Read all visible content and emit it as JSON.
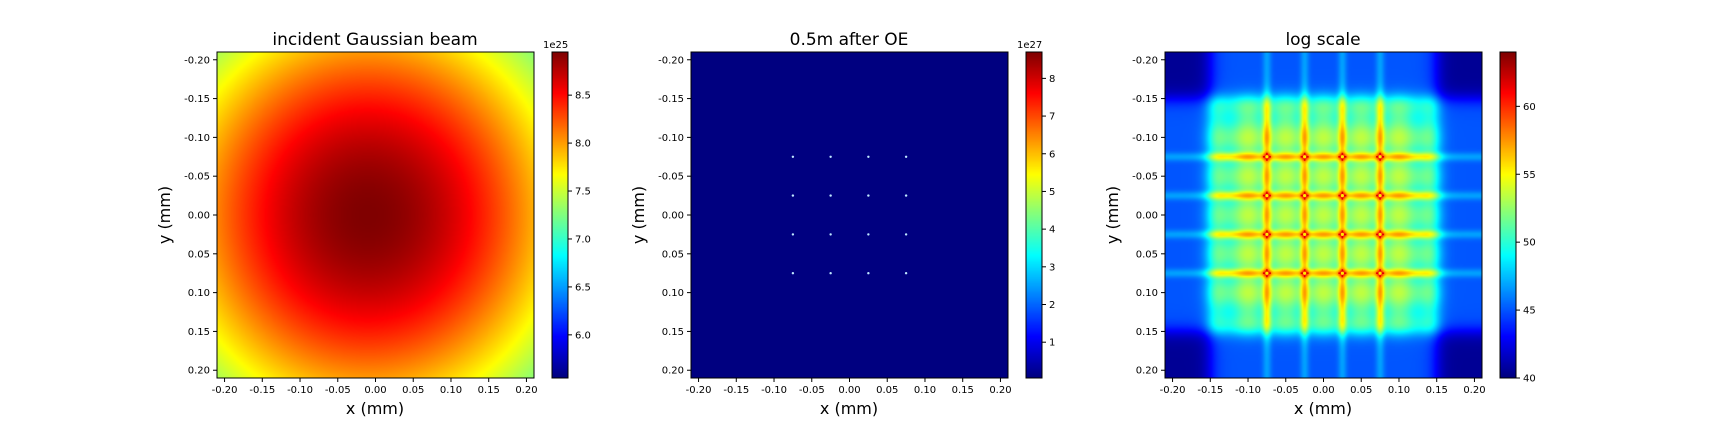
{
  "chart_data": [
    {
      "type": "heatmap",
      "title": "incident Gaussian beam",
      "xlabel": "x (mm)",
      "ylabel": "y (mm)",
      "xlim": [
        -0.21,
        0.21
      ],
      "ylim": [
        0.21,
        -0.21
      ],
      "y_inverted": true,
      "xticks": [
        "-0.20",
        "-0.15",
        "-0.10",
        "-0.05",
        "0.00",
        "0.05",
        "0.10",
        "0.15",
        "0.20"
      ],
      "yticks": [
        "-0.20",
        "-0.15",
        "-0.10",
        "-0.05",
        "0.00",
        "0.05",
        "0.10",
        "0.15",
        "0.20"
      ],
      "colormap": "jet",
      "field": "gaussian",
      "gaussian_center": [
        -0.01,
        0.0
      ],
      "gaussian_sigma": 0.262,
      "colorbar": {
        "min": 5.55,
        "max": 8.95,
        "ticks": [
          "6.0",
          "6.5",
          "7.0",
          "7.5",
          "8.0",
          "8.5"
        ],
        "offset_text": "1e25"
      }
    },
    {
      "type": "heatmap",
      "title": "0.5m after OE",
      "xlabel": "x (mm)",
      "ylabel": "y (mm)",
      "xlim": [
        -0.21,
        0.21
      ],
      "ylim": [
        0.21,
        -0.21
      ],
      "y_inverted": true,
      "xticks": [
        "-0.20",
        "-0.15",
        "-0.10",
        "-0.05",
        "0.00",
        "0.05",
        "0.10",
        "0.15",
        "0.20"
      ],
      "yticks": [
        "-0.20",
        "-0.15",
        "-0.10",
        "-0.05",
        "0.00",
        "0.05",
        "0.10",
        "0.15",
        "0.20"
      ],
      "colormap": "jet",
      "field": "spots",
      "spot_positions": [
        -0.075,
        -0.025,
        0.025,
        0.075
      ],
      "background_level": 0.0,
      "colorbar": {
        "min": 0.05,
        "max": 8.7,
        "ticks": [
          "1",
          "2",
          "3",
          "4",
          "5",
          "6",
          "7",
          "8"
        ],
        "offset_text": "1e27"
      }
    },
    {
      "type": "heatmap",
      "title": "log scale",
      "xlabel": "x (mm)",
      "ylabel": "y (mm)",
      "xlim": [
        -0.21,
        0.21
      ],
      "ylim": [
        0.21,
        -0.21
      ],
      "y_inverted": true,
      "xticks": [
        "-0.20",
        "-0.15",
        "-0.10",
        "-0.05",
        "0.00",
        "0.05",
        "0.10",
        "0.15",
        "0.20"
      ],
      "yticks": [
        "-0.20",
        "-0.15",
        "-0.10",
        "-0.05",
        "0.00",
        "0.05",
        "0.10",
        "0.15",
        "0.20"
      ],
      "colormap": "jet",
      "field": "log_grid",
      "spot_positions": [
        -0.075,
        -0.025,
        0.025,
        0.075
      ],
      "grid_extent": 0.15,
      "colorbar": {
        "min": 40,
        "max": 64,
        "ticks": [
          "40",
          "45",
          "50",
          "55",
          "60"
        ],
        "offset_text": ""
      }
    }
  ]
}
